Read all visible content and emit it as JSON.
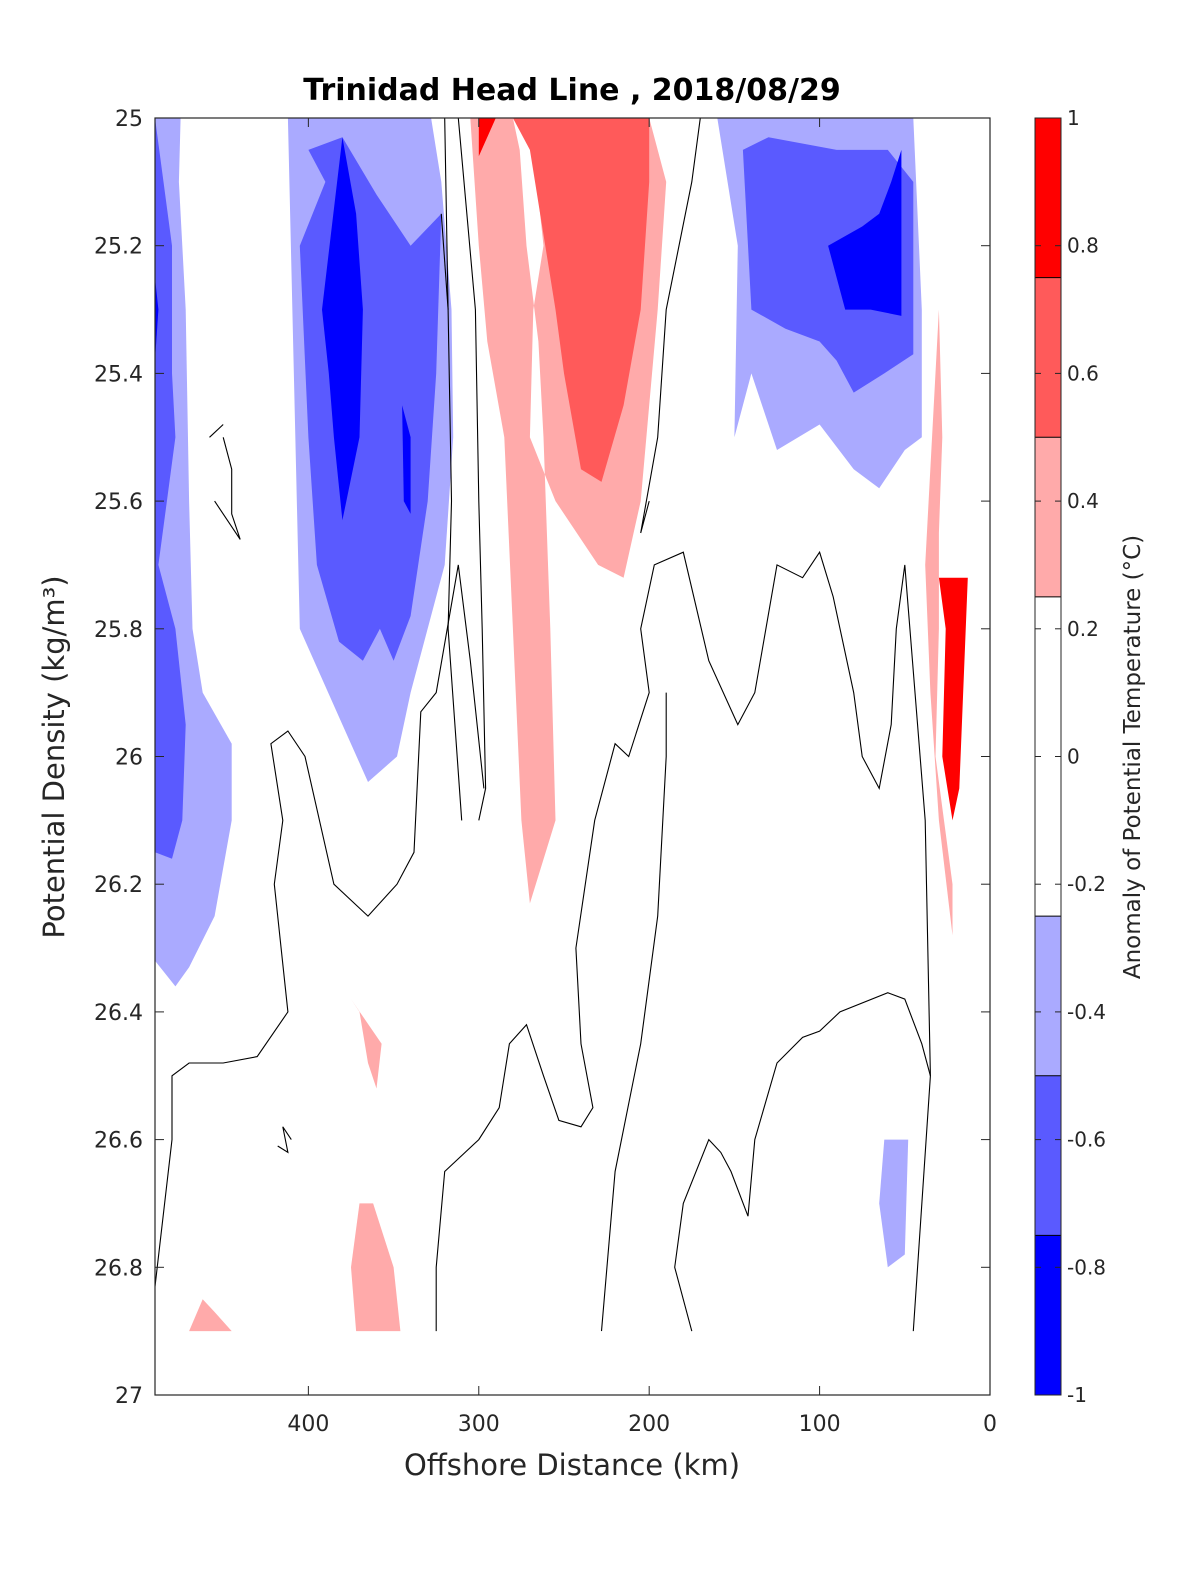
{
  "chart_data": {
    "type": "contour",
    "title": "Trinidad Head Line , 2018/08/29",
    "xlabel": "Offshore Distance (km)",
    "ylabel": "Potential Density (kg/m³)",
    "xlim": [
      490,
      0
    ],
    "x_reversed": true,
    "ylim": [
      25,
      27
    ],
    "y_reversed": true,
    "xticks": [
      400,
      300,
      200,
      100,
      0
    ],
    "yticks": [
      25,
      25.2,
      25.4,
      25.6,
      25.8,
      26,
      26.2,
      26.4,
      26.6,
      26.8,
      27
    ],
    "grid": false,
    "colorbar": {
      "label": "Anomaly of Potential Temperature (°C)",
      "range": [
        -1,
        1
      ],
      "ticks": [
        -1,
        -0.8,
        -0.6,
        -0.4,
        -0.2,
        0,
        0.2,
        0.4,
        0.6,
        0.8,
        1
      ],
      "levels": [
        {
          "from": 0.75,
          "to": 1.0,
          "color": "#ff0000"
        },
        {
          "from": 0.5,
          "to": 0.75,
          "color": "#ff5a5a"
        },
        {
          "from": 0.25,
          "to": 0.5,
          "color": "#ffaaaa"
        },
        {
          "from": -0.25,
          "to": 0.25,
          "color": "#ffffff"
        },
        {
          "from": -0.5,
          "to": -0.25,
          "color": "#aaaaff"
        },
        {
          "from": -0.75,
          "to": -0.5,
          "color": "#5a5aff"
        },
        {
          "from": -1.0,
          "to": -0.75,
          "color": "#0000ff"
        }
      ]
    },
    "filled_regions": [
      {
        "level": -0.375,
        "points": [
          [
            490,
            25
          ],
          [
            475,
            25
          ],
          [
            476,
            25.1
          ],
          [
            472,
            25.3
          ],
          [
            470,
            25.6
          ],
          [
            468,
            25.8
          ],
          [
            462,
            25.9
          ],
          [
            445,
            25.98
          ],
          [
            445,
            26.1
          ],
          [
            455,
            26.25
          ],
          [
            470,
            26.33
          ],
          [
            478,
            26.36
          ],
          [
            490,
            26.32
          ]
        ]
      },
      {
        "level": -0.625,
        "points": [
          [
            490,
            25
          ],
          [
            490,
            26.15
          ],
          [
            480,
            26.16
          ],
          [
            474,
            26.1
          ],
          [
            472,
            25.95
          ],
          [
            478,
            25.8
          ],
          [
            488,
            25.7
          ],
          [
            478,
            25.5
          ],
          [
            480,
            25.4
          ],
          [
            480,
            25.2
          ],
          [
            490,
            25.0
          ]
        ]
      },
      {
        "level": -0.875,
        "points": [
          [
            490,
            25.25
          ],
          [
            488,
            25.3
          ],
          [
            490,
            25.38
          ]
        ]
      },
      {
        "level": -0.375,
        "points": [
          [
            412,
            25
          ],
          [
            405,
            25.8
          ],
          [
            380,
            25.95
          ],
          [
            365,
            26.04
          ],
          [
            348,
            26
          ],
          [
            340,
            25.9
          ],
          [
            320,
            25.7
          ],
          [
            315,
            25.5
          ],
          [
            316,
            25.3
          ],
          [
            322,
            25.1
          ],
          [
            328,
            25
          ],
          [
            340,
            25
          ],
          [
            360,
            25
          ],
          [
            390,
            25
          ]
        ]
      },
      {
        "level": -0.625,
        "points": [
          [
            400,
            25.05
          ],
          [
            390,
            25.1
          ],
          [
            405,
            25.2
          ],
          [
            400,
            25.5
          ],
          [
            395,
            25.7
          ],
          [
            382,
            25.82
          ],
          [
            368,
            25.85
          ],
          [
            358,
            25.8
          ],
          [
            350,
            25.85
          ],
          [
            340,
            25.78
          ],
          [
            330,
            25.6
          ],
          [
            325,
            25.4
          ],
          [
            322,
            25.15
          ],
          [
            340,
            25.2
          ],
          [
            360,
            25.12
          ],
          [
            380,
            25.03
          ]
        ]
      },
      {
        "level": -0.875,
        "points": [
          [
            380,
            25.03
          ],
          [
            392,
            25.3
          ],
          [
            388,
            25.4
          ],
          [
            385,
            25.5
          ],
          [
            380,
            25.63
          ],
          [
            370,
            25.5
          ],
          [
            368,
            25.3
          ],
          [
            372,
            25.15
          ]
        ]
      },
      {
        "level": -0.875,
        "points": [
          [
            345,
            25.45
          ],
          [
            340,
            25.5
          ],
          [
            340,
            25.62
          ],
          [
            344,
            25.6
          ]
        ]
      },
      {
        "level": 0.375,
        "points": [
          [
            305,
            25
          ],
          [
            300,
            25.2
          ],
          [
            295,
            25.35
          ],
          [
            285,
            25.5
          ],
          [
            280,
            25.8
          ],
          [
            275,
            26.1
          ],
          [
            270,
            26.23
          ],
          [
            255,
            26.1
          ],
          [
            258,
            25.8
          ],
          [
            262,
            25.5
          ],
          [
            265,
            25.35
          ],
          [
            272,
            25.2
          ],
          [
            276,
            25.05
          ],
          [
            280,
            25
          ],
          [
            325,
            25
          ],
          [
            200,
            25
          ],
          [
            190,
            25.1
          ],
          [
            195,
            25.3
          ],
          [
            205,
            25.6
          ],
          [
            215,
            25.72
          ],
          [
            230,
            25.7
          ],
          [
            255,
            25.6
          ],
          [
            270,
            25.5
          ],
          [
            268,
            25.3
          ],
          [
            262,
            25.2
          ],
          [
            268,
            25.05
          ],
          [
            280,
            25
          ]
        ]
      },
      {
        "level": 0.625,
        "points": [
          [
            270,
            25.05
          ],
          [
            255,
            25.3
          ],
          [
            250,
            25.4
          ],
          [
            240,
            25.55
          ],
          [
            228,
            25.57
          ],
          [
            215,
            25.45
          ],
          [
            205,
            25.3
          ],
          [
            200,
            25.1
          ],
          [
            200,
            25
          ],
          [
            280,
            25
          ]
        ]
      },
      {
        "level": 0.875,
        "points": [
          [
            300,
            25
          ],
          [
            300,
            25.06
          ],
          [
            290,
            25
          ],
          [
            300,
            25
          ]
        ]
      },
      {
        "level": -0.375,
        "points": [
          [
            160,
            25
          ],
          [
            148,
            25.2
          ],
          [
            150,
            25.5
          ],
          [
            140,
            25.4
          ],
          [
            125,
            25.52
          ],
          [
            100,
            25.48
          ],
          [
            80,
            25.55
          ],
          [
            65,
            25.58
          ],
          [
            50,
            25.52
          ],
          [
            40,
            25.5
          ],
          [
            40,
            25.3
          ],
          [
            45,
            25
          ],
          [
            90,
            25
          ],
          [
            120,
            25
          ]
        ]
      },
      {
        "level": -0.625,
        "points": [
          [
            145,
            25.05
          ],
          [
            140,
            25.3
          ],
          [
            120,
            25.33
          ],
          [
            100,
            25.35
          ],
          [
            90,
            25.38
          ],
          [
            80,
            25.43
          ],
          [
            62,
            25.4
          ],
          [
            45,
            25.37
          ],
          [
            45,
            25.1
          ],
          [
            60,
            25.05
          ],
          [
            90,
            25.05
          ],
          [
            130,
            25.03
          ]
        ]
      },
      {
        "level": -0.875,
        "points": [
          [
            95,
            25.2
          ],
          [
            85,
            25.3
          ],
          [
            70,
            25.3
          ],
          [
            52,
            25.31
          ],
          [
            52,
            25.05
          ],
          [
            58,
            25.1
          ],
          [
            65,
            25.15
          ],
          [
            75,
            25.17
          ]
        ]
      },
      {
        "level": 0.375,
        "points": [
          [
            30,
            25.3
          ],
          [
            28,
            25.5
          ],
          [
            30,
            25.65
          ],
          [
            30,
            25.8
          ],
          [
            32,
            26.0
          ],
          [
            22,
            26.2
          ],
          [
            22,
            26.28
          ],
          [
            30,
            26.1
          ],
          [
            35,
            25.9
          ],
          [
            38,
            25.7
          ]
        ]
      },
      {
        "level": 0.875,
        "points": [
          [
            30,
            25.72
          ],
          [
            26,
            25.8
          ],
          [
            28,
            26.0
          ],
          [
            22,
            26.1
          ],
          [
            18,
            26.05
          ],
          [
            13,
            25.72
          ]
        ]
      },
      {
        "level": 0.375,
        "points": [
          [
            375,
            26.38
          ],
          [
            370,
            26.4
          ],
          [
            365,
            26.48
          ],
          [
            360,
            26.52
          ],
          [
            357,
            26.45
          ]
        ]
      },
      {
        "level": 0.375,
        "points": [
          [
            370,
            26.7
          ],
          [
            375,
            26.8
          ],
          [
            372,
            26.9
          ],
          [
            346,
            26.9
          ],
          [
            350,
            26.8
          ],
          [
            362,
            26.7
          ]
        ]
      },
      {
        "level": 0.375,
        "points": [
          [
            470,
            26.9
          ],
          [
            462,
            26.85
          ],
          [
            455,
            26.87
          ],
          [
            445,
            26.9
          ]
        ]
      },
      {
        "level": -0.375,
        "points": [
          [
            62,
            26.6
          ],
          [
            65,
            26.7
          ],
          [
            60,
            26.8
          ],
          [
            50,
            26.78
          ],
          [
            48,
            26.6
          ]
        ]
      }
    ],
    "zero_contour_lines": [
      [
        [
          312,
          25
        ],
        [
          302,
          25.3
        ],
        [
          300,
          25.6
        ],
        [
          298,
          25.8
        ],
        [
          296,
          26.05
        ],
        [
          300,
          26.1
        ]
      ],
      [
        [
          320,
          25
        ],
        [
          318,
          25.3
        ],
        [
          316,
          25.6
        ],
        [
          318,
          25.8
        ],
        [
          310,
          26.1
        ]
      ],
      [
        [
          322,
          25.15
        ],
        [
          318,
          25.3
        ]
      ],
      [
        [
          450,
          25.5
        ],
        [
          445,
          25.55
        ],
        [
          445,
          25.62
        ],
        [
          440,
          25.66
        ],
        [
          455,
          25.6
        ]
      ],
      [
        [
          458,
          25.5
        ],
        [
          450,
          25.48
        ]
      ],
      [
        [
          490,
          26.83
        ],
        [
          480,
          26.6
        ],
        [
          480,
          26.5
        ],
        [
          470,
          26.48
        ],
        [
          450,
          26.48
        ],
        [
          430,
          26.47
        ],
        [
          412,
          26.4
        ],
        [
          420,
          26.2
        ],
        [
          415,
          26.1
        ],
        [
          422,
          25.98
        ],
        [
          412,
          25.96
        ],
        [
          402,
          26.0
        ],
        [
          385,
          26.2
        ],
        [
          365,
          26.25
        ],
        [
          348,
          26.2
        ],
        [
          338,
          26.15
        ],
        [
          334,
          25.93
        ],
        [
          325,
          25.9
        ],
        [
          312,
          25.7
        ],
        [
          305,
          25.85
        ],
        [
          297,
          26.05
        ]
      ],
      [
        [
          410,
          26.6
        ],
        [
          415,
          26.58
        ],
        [
          412,
          26.62
        ],
        [
          418,
          26.61
        ]
      ],
      [
        [
          325,
          26.9
        ],
        [
          325,
          26.8
        ],
        [
          320,
          26.65
        ],
        [
          300,
          26.6
        ],
        [
          288,
          26.55
        ],
        [
          282,
          26.45
        ],
        [
          272,
          26.42
        ],
        [
          262,
          26.5
        ],
        [
          253,
          26.57
        ],
        [
          240,
          26.58
        ],
        [
          233,
          26.55
        ],
        [
          240,
          26.45
        ],
        [
          243,
          26.3
        ],
        [
          232,
          26.1
        ],
        [
          220,
          25.98
        ],
        [
          212,
          26.0
        ],
        [
          200,
          25.9
        ],
        [
          205,
          25.8
        ],
        [
          197,
          25.7
        ],
        [
          180,
          25.68
        ],
        [
          165,
          25.85
        ],
        [
          148,
          25.95
        ],
        [
          138,
          25.9
        ],
        [
          125,
          25.7
        ],
        [
          110,
          25.72
        ],
        [
          100,
          25.68
        ],
        [
          92,
          25.75
        ],
        [
          80,
          25.9
        ],
        [
          75,
          26.0
        ],
        [
          65,
          26.05
        ],
        [
          58,
          25.95
        ],
        [
          55,
          25.8
        ],
        [
          50,
          25.7
        ],
        [
          44,
          25.9
        ],
        [
          38,
          26.1
        ],
        [
          35,
          26.5
        ],
        [
          45,
          26.9
        ]
      ],
      [
        [
          228,
          26.9
        ],
        [
          220,
          26.65
        ],
        [
          205,
          26.45
        ],
        [
          195,
          26.25
        ],
        [
          190,
          26.0
        ],
        [
          190,
          25.9
        ]
      ],
      [
        [
          175,
          26.9
        ],
        [
          185,
          26.8
        ],
        [
          180,
          26.7
        ],
        [
          165,
          26.6
        ],
        [
          158,
          26.62
        ],
        [
          152,
          26.65
        ],
        [
          142,
          26.72
        ],
        [
          138,
          26.6
        ],
        [
          125,
          26.48
        ],
        [
          110,
          26.44
        ],
        [
          100,
          26.43
        ],
        [
          88,
          26.4
        ],
        [
          60,
          26.37
        ],
        [
          50,
          26.38
        ],
        [
          40,
          26.45
        ],
        [
          35,
          26.5
        ]
      ],
      [
        [
          200,
          25.6
        ],
        [
          205,
          25.65
        ],
        [
          195,
          25.5
        ],
        [
          190,
          25.3
        ],
        [
          175,
          25.1
        ],
        [
          170,
          25
        ]
      ]
    ]
  }
}
